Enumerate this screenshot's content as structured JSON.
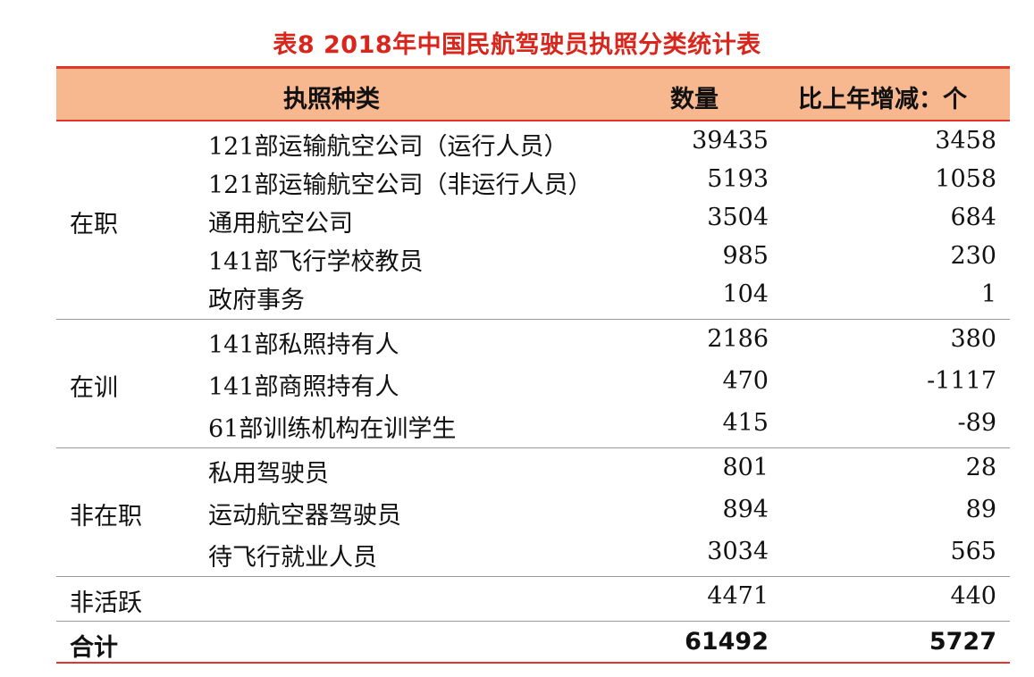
{
  "title": "表8  2018年中国民航驾驶员执照分类统计表",
  "columns": {
    "type": "执照种类",
    "count": "数量",
    "change": "比上年增减：个"
  },
  "groups": [
    {
      "label": "在职",
      "rows": [
        {
          "name": "121部运输航空公司（运行人员）",
          "count": "39435",
          "change": "3458"
        },
        {
          "name": "121部运输航空公司（非运行人员）",
          "count": "5193",
          "change": "1058"
        },
        {
          "name": "通用航空公司",
          "count": "3504",
          "change": "684"
        },
        {
          "name": "141部飞行学校教员",
          "count": "985",
          "change": "230"
        },
        {
          "name": "政府事务",
          "count": "104",
          "change": "1"
        }
      ]
    },
    {
      "label": "在训",
      "rows": [
        {
          "name": "141部私照持有人",
          "count": "2186",
          "change": "380"
        },
        {
          "name": "141部商照持有人",
          "count": "470",
          "change": "-1117"
        },
        {
          "name": "61部训练机构在训学生",
          "count": "415",
          "change": "-89"
        }
      ]
    },
    {
      "label": "非在职",
      "rows": [
        {
          "name": "私用驾驶员",
          "count": "801",
          "change": "28"
        },
        {
          "name": "运动航空器驾驶员",
          "count": "894",
          "change": "89"
        },
        {
          "name": "待飞行就业人员",
          "count": "3034",
          "change": "565"
        }
      ]
    },
    {
      "label": "非活跃",
      "rows": [
        {
          "name": "",
          "count": "4471",
          "change": "440"
        }
      ]
    }
  ],
  "total": {
    "label": "合计",
    "count": "61492",
    "change": "5727"
  },
  "colors": {
    "title": "#d9261c",
    "rule": "#e2362b",
    "header_fill": "#f8b88f",
    "divider": "#9a9a9a"
  }
}
